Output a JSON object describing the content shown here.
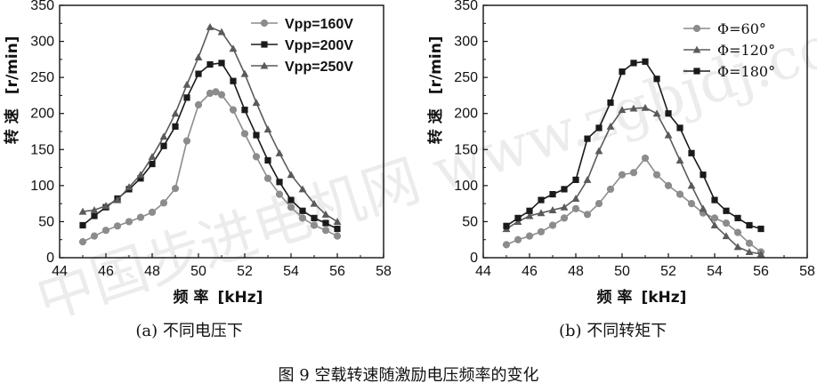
{
  "watermark": "中国步进电机网 www.zgbjdj.com",
  "figure_caption": "图 9  空载转速随激励电压频率的变化",
  "chart_data": [
    {
      "type": "line",
      "caption": "(a)  不同电压下",
      "xlabel_main": "频  率",
      "xlabel_unit": "[kHz]",
      "ylabel_main": "转  速",
      "ylabel_unit": "[r/min]",
      "xlim": [
        44,
        58
      ],
      "ylim": [
        0,
        350
      ],
      "xticks": [
        44,
        46,
        48,
        50,
        52,
        54,
        56,
        58
      ],
      "yticks": [
        0,
        50,
        100,
        150,
        200,
        250,
        300,
        350
      ],
      "legend_position": "top-right",
      "series": [
        {
          "name": "Vpp=160V",
          "marker": "circle",
          "color": "#8c8c8c",
          "x": [
            45,
            45.5,
            46,
            46.5,
            47,
            47.5,
            48,
            48.5,
            49,
            49.5,
            50,
            50.5,
            50.75,
            51,
            51.5,
            52,
            52.5,
            53,
            53.5,
            54,
            54.5,
            55,
            55.5,
            56
          ],
          "y": [
            22,
            30,
            38,
            44,
            50,
            56,
            63,
            76,
            96,
            162,
            212,
            228,
            230,
            226,
            205,
            172,
            140,
            110,
            88,
            70,
            55,
            45,
            38,
            30
          ]
        },
        {
          "name": "Vpp=200V",
          "marker": "square",
          "color": "#1a1a1a",
          "x": [
            45,
            45.5,
            46,
            46.5,
            47,
            47.5,
            48,
            48.5,
            49,
            49.5,
            50,
            50.5,
            51,
            51.5,
            52,
            52.5,
            53,
            53.5,
            54,
            54.5,
            55,
            55.5,
            56
          ],
          "y": [
            45,
            58,
            70,
            82,
            95,
            110,
            130,
            155,
            182,
            222,
            255,
            268,
            270,
            245,
            205,
            170,
            135,
            105,
            80,
            65,
            55,
            48,
            40
          ]
        },
        {
          "name": "Vpp=250V",
          "marker": "triangle",
          "color": "#5a5a5a",
          "x": [
            45,
            45.5,
            46,
            46.5,
            47,
            47.5,
            48,
            48.5,
            49,
            49.5,
            50,
            50.5,
            51,
            51.5,
            52,
            52.5,
            53,
            53.5,
            54,
            54.5,
            55,
            55.5,
            56
          ],
          "y": [
            64,
            66,
            72,
            80,
            98,
            115,
            140,
            168,
            200,
            240,
            278,
            320,
            313,
            290,
            255,
            215,
            178,
            145,
            115,
            95,
            75,
            60,
            50
          ]
        }
      ]
    },
    {
      "type": "line",
      "caption": "(b)  不同转矩下",
      "xlabel_main": "频  率",
      "xlabel_unit": "[kHz]",
      "ylabel_main": "转  速",
      "ylabel_unit": "[r/min]",
      "xlim": [
        44,
        58
      ],
      "ylim": [
        0,
        350
      ],
      "xticks": [
        44,
        46,
        48,
        50,
        52,
        54,
        56,
        58
      ],
      "yticks": [
        0,
        50,
        100,
        150,
        200,
        250,
        300,
        350
      ],
      "legend_position": "top-right",
      "series": [
        {
          "name": "Φ=60°",
          "marker": "circle",
          "color": "#8c8c8c",
          "x": [
            45,
            45.5,
            46,
            46.5,
            47,
            47.5,
            48,
            48.5,
            49,
            49.5,
            50,
            50.5,
            51,
            51.5,
            52,
            52.5,
            53,
            53.5,
            54,
            54.5,
            55,
            55.5,
            56
          ],
          "y": [
            18,
            25,
            30,
            36,
            45,
            55,
            68,
            60,
            75,
            95,
            115,
            118,
            138,
            115,
            100,
            88,
            75,
            62,
            55,
            48,
            35,
            20,
            8
          ]
        },
        {
          "name": "Φ=120°",
          "marker": "triangle",
          "color": "#5a5a5a",
          "x": [
            45,
            45.5,
            46,
            46.5,
            47,
            47.5,
            48,
            48.5,
            49,
            49.5,
            50,
            50.5,
            51,
            51.5,
            52,
            52.5,
            53,
            53.5,
            54,
            54.5,
            55,
            55.5,
            56
          ],
          "y": [
            40,
            50,
            58,
            62,
            66,
            70,
            82,
            108,
            148,
            182,
            205,
            207,
            208,
            200,
            170,
            135,
            100,
            68,
            45,
            30,
            15,
            8,
            5
          ]
        },
        {
          "name": "Φ=180°",
          "marker": "square",
          "color": "#1a1a1a",
          "x": [
            45,
            45.5,
            46,
            46.5,
            47,
            47.5,
            48,
            48.5,
            49,
            49.5,
            50,
            50.5,
            51,
            51.5,
            52,
            52.5,
            53,
            53.5,
            54,
            54.5,
            55,
            55.5,
            56
          ],
          "y": [
            44,
            55,
            65,
            80,
            88,
            95,
            108,
            165,
            180,
            215,
            258,
            270,
            272,
            248,
            200,
            180,
            145,
            115,
            80,
            65,
            55,
            45,
            40
          ]
        }
      ]
    }
  ]
}
